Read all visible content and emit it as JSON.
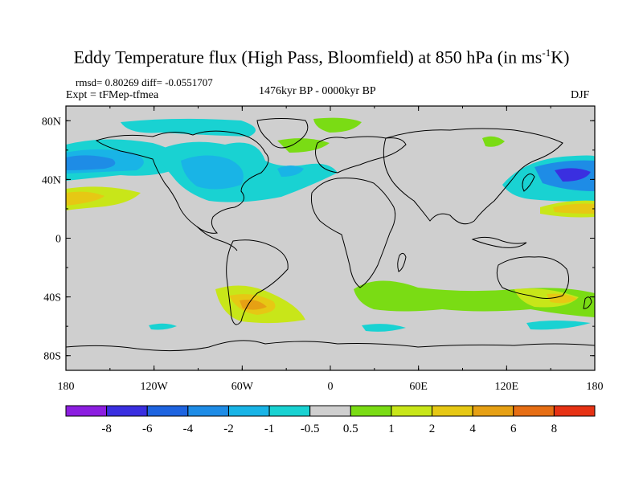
{
  "title": {
    "main": "Eddy Temperature flux (High Pass, Bloomfield) at 850 hPa (in ms",
    "sup": "-1",
    "unit_tail": "K)"
  },
  "stats_text": "rmsd= 0.80269 diff= -0.0551707",
  "expt_text": "Expt = tFMep-tfmea",
  "period_text": "1476kyr BP - 0000kyr BP",
  "season_text": "DJF",
  "lat_labels": [
    "80N",
    "40N",
    "0",
    "40S",
    "80S"
  ],
  "lon_labels": [
    "180",
    "120W",
    "60W",
    "0",
    "60E",
    "120E",
    "180"
  ],
  "colorbar": {
    "labels": [
      "-8",
      "-6",
      "-4",
      "-2",
      "-1",
      "-0.5",
      "0.5",
      "1",
      "2",
      "4",
      "6",
      "8"
    ],
    "colors": [
      "#8c1ee0",
      "#3a2fe0",
      "#1e64e0",
      "#1e8ce6",
      "#19b4e6",
      "#19d2d2",
      "#cfcfcf",
      "#7adc14",
      "#c8e619",
      "#e6c814",
      "#e6a014",
      "#e66e14",
      "#e63214"
    ]
  },
  "map": {
    "lat_range": [
      -90,
      90
    ],
    "lon_range": [
      -180,
      180
    ],
    "background_color": "#cfcfcf",
    "coastline_color": "#000000"
  }
}
